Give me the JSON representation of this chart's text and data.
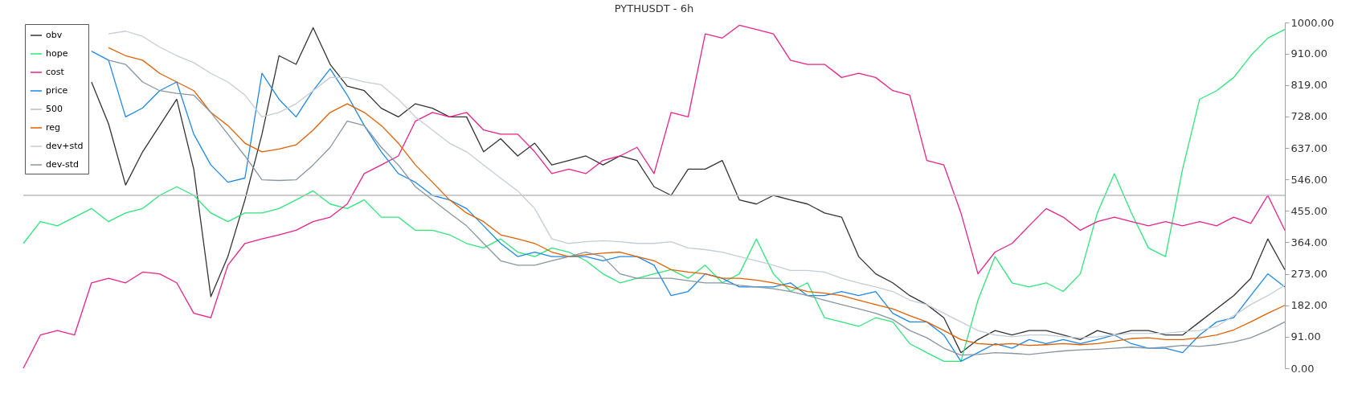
{
  "chart_data": {
    "type": "line",
    "title": "PYTHUSDT - 6h",
    "categories": [
      null,
      null,
      null,
      null,
      null,
      null,
      null,
      null,
      null,
      null,
      null,
      null,
      null,
      null,
      null,
      null,
      null,
      null,
      null,
      null,
      null,
      null,
      null,
      null,
      null,
      null,
      null,
      null,
      null,
      null,
      null,
      null,
      null,
      null,
      null,
      null,
      null,
      null,
      null,
      null,
      null,
      null,
      null,
      null,
      null,
      null,
      null,
      null,
      null,
      null,
      null,
      null,
      null,
      null,
      null,
      null,
      null,
      null,
      null,
      null,
      null,
      null,
      null,
      null,
      null,
      null,
      null,
      null,
      null,
      null,
      null,
      null,
      null,
      null,
      null
    ],
    "ylim": [
      0,
      1000
    ],
    "yticks": [
      {
        "value": 0,
        "label": "0.00"
      },
      {
        "value": 91,
        "label": "91.00"
      },
      {
        "value": 182,
        "label": "182.00"
      },
      {
        "value": 273,
        "label": "273.00"
      },
      {
        "value": 364,
        "label": "364.00"
      },
      {
        "value": 455,
        "label": "455.00"
      },
      {
        "value": 546,
        "label": "546.00"
      },
      {
        "value": 637,
        "label": "637.00"
      },
      {
        "value": 728,
        "label": "728.00"
      },
      {
        "value": 819,
        "label": "819.00"
      },
      {
        "value": 910,
        "label": "910.00"
      },
      {
        "value": 1000,
        "label": "1000.00"
      }
    ],
    "grid": false,
    "legend": "top left",
    "marker": "none",
    "line_style": "solid",
    "tick_labels": "y",
    "series": [
      {
        "name": "obv",
        "color": "#333333",
        "values": [
          null,
          null,
          null,
          null,
          828,
          707,
          530,
          626,
          702,
          778,
          576,
          207,
          323,
          487,
          677,
          904,
          879,
          985,
          879,
          816,
          803,
          752,
          727,
          765,
          752,
          727,
          727,
          626,
          664,
          614,
          651,
          588,
          601,
          614,
          588,
          614,
          601,
          525,
          500,
          576,
          576,
          601,
          487,
          475,
          500,
          487,
          475,
          449,
          437,
          323,
          273,
          247,
          210,
          184,
          146,
          45,
          83,
          109,
          96,
          109,
          109,
          96,
          83,
          109,
          96,
          109,
          109,
          96,
          96,
          134,
          172,
          210,
          260,
          374,
          285
        ]
      },
      {
        "name": "hope",
        "color": "#2ee57a",
        "values": [
          361,
          424,
          412,
          437,
          462,
          424,
          449,
          462,
          500,
          525,
          500,
          449,
          424,
          449,
          449,
          462,
          487,
          513,
          475,
          462,
          487,
          437,
          437,
          399,
          399,
          386,
          361,
          348,
          374,
          336,
          323,
          348,
          336,
          311,
          273,
          247,
          260,
          273,
          285,
          260,
          298,
          247,
          273,
          374,
          273,
          222,
          247,
          146,
          134,
          121,
          146,
          134,
          71,
          45,
          20,
          20,
          197,
          323,
          247,
          235,
          247,
          222,
          273,
          449,
          563,
          449,
          348,
          323,
          576,
          778,
          803,
          841,
          904,
          955,
          980
        ]
      },
      {
        "name": "cost",
        "color": "#e6238a",
        "values": [
          0,
          96,
          109,
          96,
          247,
          260,
          247,
          278,
          273,
          247,
          159,
          146,
          298,
          361,
          374,
          386,
          399,
          424,
          437,
          475,
          563,
          588,
          614,
          715,
          740,
          727,
          740,
          689,
          677,
          677,
          626,
          563,
          576,
          563,
          601,
          614,
          639,
          563,
          740,
          727,
          967,
          955,
          992,
          980,
          967,
          891,
          879,
          879,
          841,
          853,
          841,
          803,
          790,
          601,
          588,
          449,
          273,
          336,
          361,
          412,
          462,
          437,
          399,
          424,
          437,
          424,
          412,
          424,
          412,
          424,
          412,
          437,
          419,
          500,
          399
        ]
      },
      {
        "name": "price",
        "color": "#1e88e5",
        "values": [
          null,
          null,
          null,
          null,
          917,
          891,
          727,
          753,
          803,
          828,
          677,
          588,
          538,
          550,
          853,
          778,
          727,
          803,
          866,
          790,
          702,
          626,
          563,
          538,
          500,
          487,
          462,
          412,
          361,
          323,
          336,
          323,
          323,
          323,
          311,
          323,
          323,
          298,
          210,
          222,
          273,
          260,
          235,
          235,
          235,
          247,
          210,
          210,
          222,
          210,
          222,
          159,
          134,
          134,
          96,
          20,
          45,
          71,
          58,
          83,
          71,
          83,
          71,
          83,
          96,
          71,
          58,
          58,
          45,
          96,
          134,
          146,
          210,
          273,
          235
        ]
      },
      {
        "name": "500",
        "color": "#bbbbbb",
        "values": [
          500,
          500,
          500,
          500,
          500,
          500,
          500,
          500,
          500,
          500,
          500,
          500,
          500,
          500,
          500,
          500,
          500,
          500,
          500,
          500,
          500,
          500,
          500,
          500,
          500,
          500,
          500,
          500,
          500,
          500,
          500,
          500,
          500,
          500,
          500,
          500,
          500,
          500,
          500,
          500,
          500,
          500,
          500,
          500,
          500,
          500,
          500,
          500,
          500,
          500,
          500,
          500,
          500,
          500,
          500,
          500,
          500,
          500,
          500,
          500,
          500,
          500,
          500,
          500,
          500,
          500,
          500,
          500,
          500,
          500,
          500,
          500,
          500,
          500,
          500
        ]
      },
      {
        "name": "reg",
        "color": "#e06000",
        "values": [
          null,
          null,
          null,
          null,
          null,
          927,
          904,
          891,
          853,
          828,
          803,
          740,
          702,
          651,
          626,
          634,
          646,
          689,
          740,
          765,
          740,
          702,
          651,
          588,
          538,
          487,
          449,
          424,
          386,
          374,
          361,
          336,
          323,
          328,
          333,
          336,
          323,
          311,
          285,
          278,
          273,
          260,
          260,
          255,
          247,
          235,
          222,
          217,
          210,
          197,
          184,
          172,
          152,
          134,
          109,
          83,
          71,
          68,
          71,
          66,
          68,
          71,
          68,
          71,
          78,
          86,
          88,
          83,
          83,
          88,
          96,
          111,
          134,
          159,
          182
        ]
      },
      {
        "name": "dev+std",
        "color": "#c5ccd3",
        "values": [
          null,
          null,
          null,
          null,
          null,
          967,
          975,
          960,
          929,
          904,
          884,
          853,
          828,
          790,
          727,
          740,
          765,
          803,
          841,
          841,
          828,
          820,
          778,
          727,
          689,
          651,
          626,
          588,
          550,
          513,
          462,
          374,
          361,
          366,
          369,
          366,
          361,
          361,
          366,
          348,
          343,
          336,
          323,
          311,
          298,
          283,
          283,
          278,
          260,
          247,
          235,
          222,
          197,
          184,
          159,
          134,
          109,
          96,
          91,
          96,
          96,
          91,
          88,
          91,
          96,
          101,
          101,
          101,
          106,
          109,
          121,
          152,
          184,
          210,
          240
        ]
      },
      {
        "name": "dev-std",
        "color": "#8895a0",
        "values": [
          null,
          null,
          null,
          null,
          null,
          891,
          879,
          828,
          803,
          795,
          790,
          740,
          677,
          614,
          545,
          543,
          545,
          588,
          639,
          715,
          702,
          639,
          588,
          525,
          487,
          449,
          412,
          361,
          311,
          298,
          298,
          311,
          323,
          336,
          323,
          273,
          260,
          260,
          260,
          253,
          247,
          247,
          240,
          235,
          230,
          222,
          210,
          197,
          184,
          172,
          159,
          141,
          109,
          88,
          58,
          38,
          40,
          45,
          43,
          40,
          45,
          50,
          53,
          55,
          58,
          61,
          58,
          61,
          66,
          63,
          68,
          76,
          88,
          109,
          134
        ]
      }
    ]
  }
}
